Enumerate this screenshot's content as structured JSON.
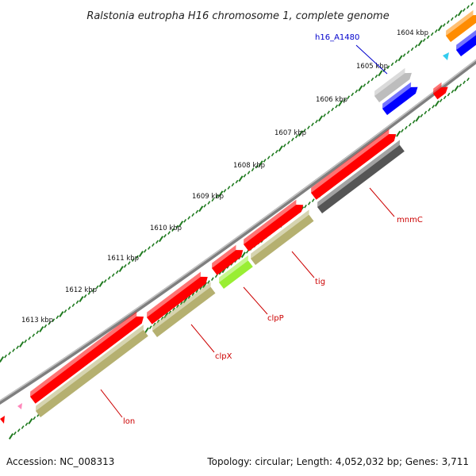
{
  "title": "Ralstonia eutropha H16 chromosome 1, complete genome",
  "footer": {
    "accession": "Accession: NC_008313",
    "summary": "Topology: circular; Length: 4,052,032 bp; Genes: 3,711"
  },
  "ticks": [
    {
      "label": "1604 kbp"
    },
    {
      "label": "1605 kbp"
    },
    {
      "label": "1606 kbp"
    },
    {
      "label": "1607 kbp"
    },
    {
      "label": "1608 kbp"
    },
    {
      "label": "1609 kbp"
    },
    {
      "label": "1610 kbp"
    },
    {
      "label": "1611 kbp"
    },
    {
      "label": "1612 kbp"
    },
    {
      "label": "1613 kbp"
    }
  ],
  "gene_labels": [
    {
      "name": "h16_A1480",
      "color": "#0000cc"
    },
    {
      "name": "mnmC",
      "color": "#cc0000"
    },
    {
      "name": "tig",
      "color": "#cc0000"
    },
    {
      "name": "clpP",
      "color": "#cc0000"
    },
    {
      "name": "clpX",
      "color": "#cc0000"
    },
    {
      "name": "lon",
      "color": "#cc0000"
    }
  ],
  "colors": {
    "cds": "#ff0000",
    "gene": "#b5b070",
    "backbone": "#8a8a8a",
    "tick": "#1f7a1f",
    "hypothetical": "#555555",
    "selected": "#0000ff",
    "pseudo": "#bdbdbd",
    "orange": "#ff8c00",
    "lime": "#99ee33",
    "cyan": "#33ccee",
    "pink": "#ff88bb"
  }
}
